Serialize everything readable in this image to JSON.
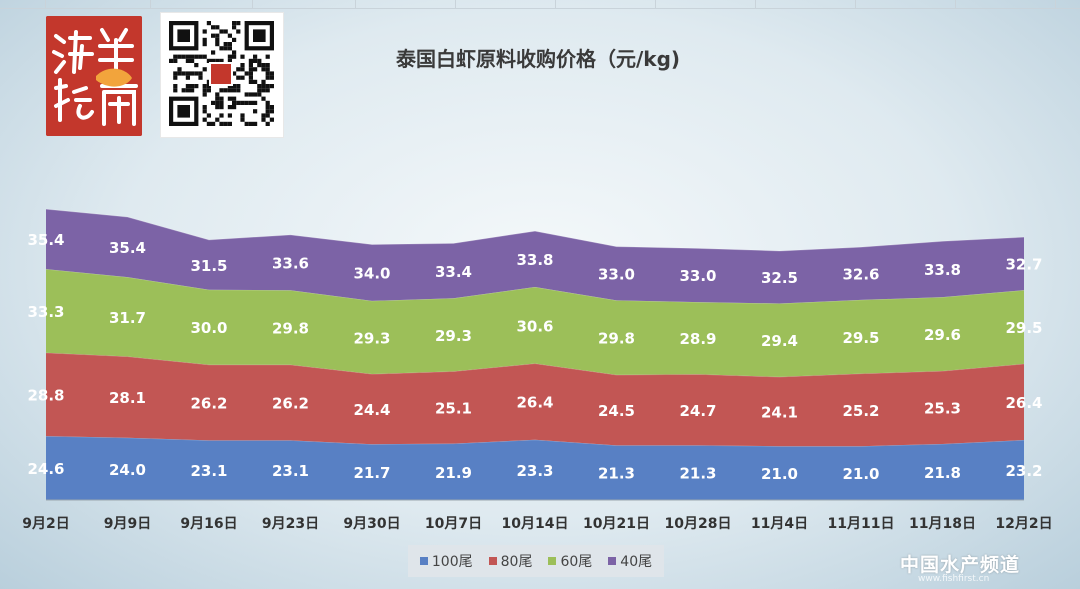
{
  "chart_data": {
    "type": "area",
    "stacked": true,
    "title": "泰国白虾原料收购价格（元/kg)",
    "categories": [
      "9月2日",
      "9月9日",
      "9月16日",
      "9月23日",
      "9月30日",
      "10月7日",
      "10月14日",
      "10月21日",
      "10月28日",
      "11月4日",
      "11月11日",
      "11月18日",
      "12月2日"
    ],
    "series": [
      {
        "name": "100尾",
        "color": "#5880c4",
        "values": [
          24.6,
          24.0,
          23.1,
          23.1,
          21.7,
          21.9,
          23.3,
          21.3,
          21.3,
          21.0,
          21.0,
          21.8,
          23.2
        ]
      },
      {
        "name": "80尾",
        "color": "#c25654",
        "values": [
          28.8,
          28.1,
          26.2,
          26.2,
          24.4,
          25.1,
          26.4,
          24.5,
          24.7,
          24.1,
          25.2,
          25.3,
          26.4
        ]
      },
      {
        "name": "60尾",
        "color": "#9cbf59",
        "values": [
          33.3,
          31.7,
          30.0,
          29.8,
          29.3,
          29.3,
          30.6,
          29.8,
          28.9,
          29.4,
          29.5,
          29.6,
          29.5
        ]
      },
      {
        "name": "40尾",
        "color": "#7c63a6",
        "values": [
          35.4,
          35.4,
          31.5,
          33.6,
          34.0,
          33.4,
          33.8,
          33.0,
          33.0,
          32.5,
          32.6,
          33.8,
          32.7
        ]
      }
    ],
    "legend_position": "bottom",
    "gridlines": false
  },
  "logo_text": "海鲜指南",
  "watermark": {
    "text": "中国水产频道",
    "sub": "www.fishfirst.cn"
  }
}
